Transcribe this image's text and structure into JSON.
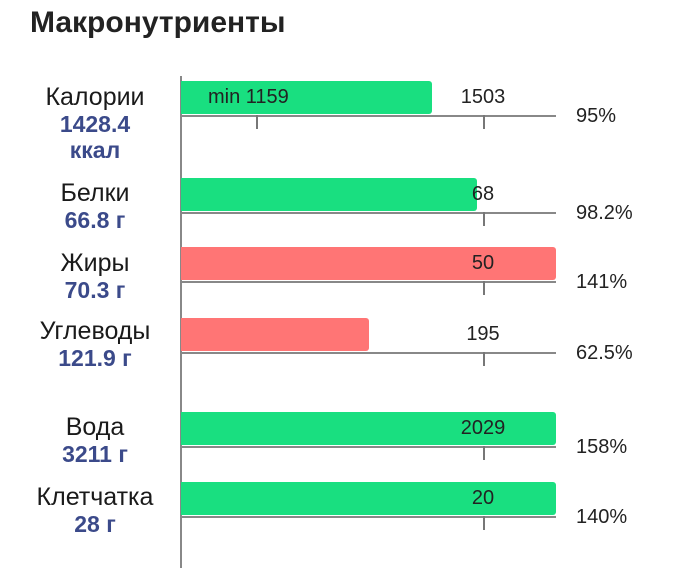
{
  "title": "Макронутриенты",
  "colors": {
    "ok": "#19df80",
    "over": "#ff7575",
    "value_text": "#3b4a8a"
  },
  "rows": [
    {
      "label": "Калории",
      "value": "1428.4 ккал",
      "target": "1503",
      "min_label": "min 1159",
      "percent": "95%",
      "fill": 0.67,
      "status": "ok"
    },
    {
      "label": "Белки",
      "value": "66.8 г",
      "target": "68",
      "percent": "98.2%",
      "fill": 0.79,
      "status": "ok"
    },
    {
      "label": "Жиры",
      "value": "70.3 г",
      "target": "50",
      "percent": "141%",
      "fill": 1.0,
      "status": "over"
    },
    {
      "label": "Углеводы",
      "value": "121.9 г",
      "target": "195",
      "percent": "62.5%",
      "fill": 0.5,
      "status": "over"
    },
    {
      "label": "Вода",
      "value": "3211 г",
      "target": "2029",
      "percent": "158%",
      "fill": 1.0,
      "status": "ok"
    },
    {
      "label": "Клетчатка",
      "value": "28 г",
      "target": "20",
      "percent": "140%",
      "fill": 1.0,
      "status": "ok"
    }
  ]
}
